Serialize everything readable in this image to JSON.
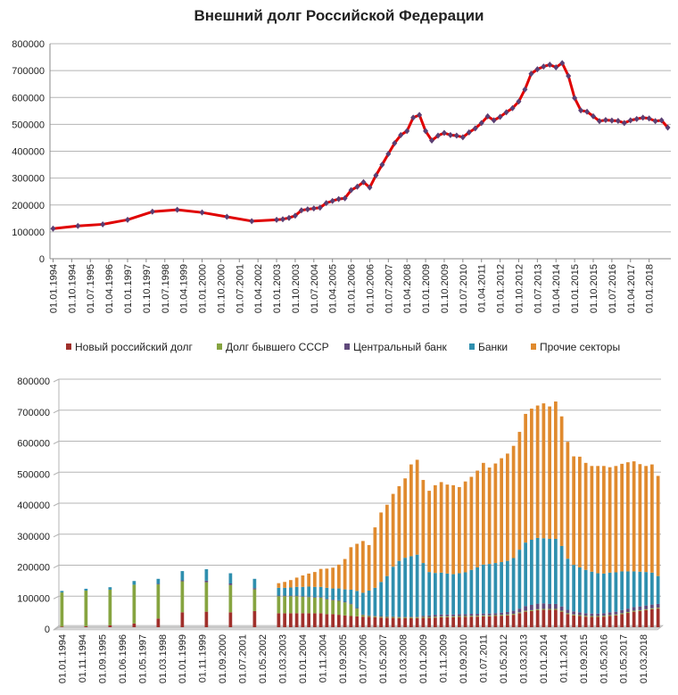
{
  "title": "Внешний долг Российской Федерации",
  "chart_data": [
    {
      "type": "line",
      "title": "Внешний долг Российской Федерации",
      "ylim": [
        0,
        800000
      ],
      "yticks": [
        "0",
        "100000",
        "200000",
        "300000",
        "400000",
        "500000",
        "600000",
        "700000",
        "800000"
      ],
      "xtick_labels": [
        "01.01.1994",
        "01.10.1994",
        "01.07.1995",
        "01.04.1996",
        "01.01.1997",
        "01.10.1997",
        "01.07.1998",
        "01.04.1999",
        "01.01.2000",
        "01.10.2000",
        "01.07.2001",
        "01.04.2002",
        "01.01.2003",
        "01.10.2003",
        "01.07.2004",
        "01.04.2005",
        "01.01.2006",
        "01.10.2006",
        "01.07.2007",
        "01.04.2008",
        "01.01.2009",
        "01.10.2009",
        "01.07.2010",
        "01.04.2011",
        "01.01.2012",
        "01.10.2012",
        "01.07.2013",
        "01.04.2014",
        "01.01.2015",
        "01.10.2015",
        "01.07.2016",
        "01.04.2017",
        "01.01.2018"
      ],
      "line_color": "#e00000",
      "marker_color": "#5b3f73",
      "points": [
        {
          "t": 0,
          "v": 112000
        },
        {
          "t": 4,
          "v": 122000
        },
        {
          "t": 8,
          "v": 128000
        },
        {
          "t": 12,
          "v": 145000
        },
        {
          "t": 16,
          "v": 175000
        },
        {
          "t": 20,
          "v": 182000
        },
        {
          "t": 24,
          "v": 172000
        },
        {
          "t": 28,
          "v": 156000
        },
        {
          "t": 32,
          "v": 140000
        },
        {
          "t": 36,
          "v": 145000
        },
        {
          "t": 37,
          "v": 147000
        },
        {
          "t": 38,
          "v": 152000
        },
        {
          "t": 39,
          "v": 160000
        },
        {
          "t": 40,
          "v": 180000
        },
        {
          "t": 41,
          "v": 184000
        },
        {
          "t": 42,
          "v": 187000
        },
        {
          "t": 43,
          "v": 190000
        },
        {
          "t": 44,
          "v": 207000
        },
        {
          "t": 45,
          "v": 215000
        },
        {
          "t": 46,
          "v": 222000
        },
        {
          "t": 47,
          "v": 225000
        },
        {
          "t": 48,
          "v": 255000
        },
        {
          "t": 49,
          "v": 268000
        },
        {
          "t": 50,
          "v": 285000
        },
        {
          "t": 51,
          "v": 265000
        },
        {
          "t": 52,
          "v": 310000
        },
        {
          "t": 53,
          "v": 350000
        },
        {
          "t": 54,
          "v": 390000
        },
        {
          "t": 55,
          "v": 430000
        },
        {
          "t": 56,
          "v": 460000
        },
        {
          "t": 57,
          "v": 475000
        },
        {
          "t": 58,
          "v": 525000
        },
        {
          "t": 59,
          "v": 535000
        },
        {
          "t": 60,
          "v": 475000
        },
        {
          "t": 61,
          "v": 440000
        },
        {
          "t": 62,
          "v": 458000
        },
        {
          "t": 63,
          "v": 468000
        },
        {
          "t": 64,
          "v": 460000
        },
        {
          "t": 65,
          "v": 458000
        },
        {
          "t": 66,
          "v": 452000
        },
        {
          "t": 67,
          "v": 470000
        },
        {
          "t": 68,
          "v": 485000
        },
        {
          "t": 69,
          "v": 505000
        },
        {
          "t": 70,
          "v": 530000
        },
        {
          "t": 71,
          "v": 515000
        },
        {
          "t": 72,
          "v": 528000
        },
        {
          "t": 73,
          "v": 545000
        },
        {
          "t": 74,
          "v": 560000
        },
        {
          "t": 75,
          "v": 585000
        },
        {
          "t": 76,
          "v": 630000
        },
        {
          "t": 77,
          "v": 688000
        },
        {
          "t": 78,
          "v": 705000
        },
        {
          "t": 79,
          "v": 715000
        },
        {
          "t": 80,
          "v": 722000
        },
        {
          "t": 81,
          "v": 712000
        },
        {
          "t": 82,
          "v": 728000
        },
        {
          "t": 83,
          "v": 680000
        },
        {
          "t": 84,
          "v": 598000
        },
        {
          "t": 85,
          "v": 552000
        },
        {
          "t": 86,
          "v": 547000
        },
        {
          "t": 87,
          "v": 530000
        },
        {
          "t": 88,
          "v": 512000
        },
        {
          "t": 89,
          "v": 516000
        },
        {
          "t": 90,
          "v": 514000
        },
        {
          "t": 91,
          "v": 513000
        },
        {
          "t": 92,
          "v": 505000
        },
        {
          "t": 93,
          "v": 515000
        },
        {
          "t": 94,
          "v": 520000
        },
        {
          "t": 95,
          "v": 525000
        },
        {
          "t": 96,
          "v": 522000
        },
        {
          "t": 97,
          "v": 512000
        },
        {
          "t": 98,
          "v": 515000
        },
        {
          "t": 99,
          "v": 488000
        }
      ]
    },
    {
      "type": "bar",
      "stacked": true,
      "ylim": [
        0,
        800000
      ],
      "yticks": [
        "0",
        "100000",
        "200000",
        "300000",
        "400000",
        "500000",
        "600000",
        "700000",
        "800000"
      ],
      "series": [
        {
          "name": "Новый российский долг",
          "color": "#a0302b"
        },
        {
          "name": "Долг бывшего СССР",
          "color": "#86a440"
        },
        {
          "name": "Центральный банк",
          "color": "#604a7b"
        },
        {
          "name": "Банки",
          "color": "#2f8fae"
        },
        {
          "name": "Прочие секторы",
          "color": "#e08a2e"
        }
      ],
      "xtick_labels": [
        "01.01.1994",
        "01.11.1994",
        "01.09.1995",
        "01.06.1996",
        "01.05.1997",
        "01.03.1998",
        "01.01.1999",
        "01.11.1999",
        "01.09.2000",
        "01.07.2001",
        "01.05.2002",
        "01.03.2003",
        "01.01.2004",
        "01.11.2004",
        "01.09.2005",
        "01.07.2006",
        "01.05.2007",
        "01.03.2008",
        "01.01.2009",
        "01.11.2009",
        "01.09.2010",
        "01.07.2011",
        "01.05.2012",
        "01.03.2013",
        "01.01.2014",
        "01.11.2014",
        "01.09.2015",
        "01.05.2016",
        "01.05.2017",
        "01.03.2018"
      ],
      "points": [
        {
          "t": 0,
          "vals": [
            2000,
            110000,
            0,
            5000,
            0
          ]
        },
        {
          "t": 4,
          "vals": [
            3000,
            115000,
            0,
            6000,
            0
          ]
        },
        {
          "t": 8,
          "vals": [
            6000,
            115000,
            0,
            8000,
            0
          ]
        },
        {
          "t": 12,
          "vals": [
            12000,
            125000,
            0,
            12000,
            0
          ]
        },
        {
          "t": 16,
          "vals": [
            28000,
            110000,
            2000,
            16000,
            0
          ]
        },
        {
          "t": 20,
          "vals": [
            48000,
            100000,
            3000,
            30000,
            0
          ]
        },
        {
          "t": 24,
          "vals": [
            50000,
            95000,
            5000,
            37000,
            0
          ]
        },
        {
          "t": 28,
          "vals": [
            48000,
            88000,
            5000,
            33000,
            0
          ]
        },
        {
          "t": 32,
          "vals": [
            52000,
            70000,
            4000,
            30000,
            0
          ]
        },
        {
          "t": 36,
          "vals": [
            45000,
            55000,
            2000,
            25000,
            15000
          ]
        },
        {
          "t": 37,
          "vals": [
            45000,
            55000,
            2000,
            25000,
            19000
          ]
        },
        {
          "t": 38,
          "vals": [
            45000,
            55000,
            2000,
            26000,
            24000
          ]
        },
        {
          "t": 39,
          "vals": [
            45000,
            55000,
            2000,
            28000,
            30000
          ]
        },
        {
          "t": 40,
          "vals": [
            45000,
            53000,
            2000,
            30000,
            37000
          ]
        },
        {
          "t": 41,
          "vals": [
            45000,
            52000,
            2000,
            32000,
            42000
          ]
        },
        {
          "t": 42,
          "vals": [
            45000,
            50000,
            2000,
            33000,
            48000
          ]
        },
        {
          "t": 43,
          "vals": [
            45000,
            50000,
            2000,
            33000,
            58000
          ]
        },
        {
          "t": 44,
          "vals": [
            42000,
            48000,
            2000,
            35000,
            62000
          ]
        },
        {
          "t": 45,
          "vals": [
            42000,
            45000,
            2000,
            36000,
            67000
          ]
        },
        {
          "t": 46,
          "vals": [
            40000,
            45000,
            2000,
            38000,
            77000
          ]
        },
        {
          "t": 47,
          "vals": [
            38000,
            42000,
            2000,
            40000,
            98000
          ]
        },
        {
          "t": 48,
          "vals": [
            36000,
            38000,
            2000,
            45000,
            137000
          ]
        },
        {
          "t": 49,
          "vals": [
            35000,
            25000,
            2000,
            55000,
            152000
          ]
        },
        {
          "t": 50,
          "vals": [
            34000,
            5000,
            2000,
            70000,
            167000
          ]
        },
        {
          "t": 51,
          "vals": [
            33000,
            3000,
            2000,
            80000,
            147000
          ]
        },
        {
          "t": 52,
          "vals": [
            32000,
            3000,
            2000,
            90000,
            195000
          ]
        },
        {
          "t": 53,
          "vals": [
            31000,
            3000,
            2000,
            110000,
            224000
          ]
        },
        {
          "t": 54,
          "vals": [
            30000,
            3000,
            2000,
            130000,
            230000
          ]
        },
        {
          "t": 55,
          "vals": [
            30000,
            3000,
            2000,
            160000,
            235000
          ]
        },
        {
          "t": 56,
          "vals": [
            29000,
            3000,
            2000,
            180000,
            241000
          ]
        },
        {
          "t": 57,
          "vals": [
            29000,
            3000,
            2000,
            190000,
            256000
          ]
        },
        {
          "t": 58,
          "vals": [
            29000,
            3000,
            2000,
            195000,
            296000
          ]
        },
        {
          "t": 59,
          "vals": [
            29000,
            3000,
            2000,
            200000,
            306000
          ]
        },
        {
          "t": 60,
          "vals": [
            30000,
            3000,
            4000,
            170000,
            268000
          ]
        },
        {
          "t": 61,
          "vals": [
            30000,
            3000,
            5000,
            140000,
            262000
          ]
        },
        {
          "t": 62,
          "vals": [
            31000,
            3000,
            6000,
            135000,
            283000
          ]
        },
        {
          "t": 63,
          "vals": [
            32000,
            3000,
            6000,
            135000,
            292000
          ]
        },
        {
          "t": 64,
          "vals": [
            32000,
            3000,
            6000,
            132000,
            287000
          ]
        },
        {
          "t": 65,
          "vals": [
            32000,
            3000,
            6000,
            130000,
            287000
          ]
        },
        {
          "t": 66,
          "vals": [
            33000,
            3000,
            6000,
            132000,
            278000
          ]
        },
        {
          "t": 67,
          "vals": [
            33000,
            3000,
            6000,
            135000,
            293000
          ]
        },
        {
          "t": 68,
          "vals": [
            34000,
            3000,
            6000,
            142000,
            300000
          ]
        },
        {
          "t": 69,
          "vals": [
            34000,
            3000,
            6000,
            150000,
            312000
          ]
        },
        {
          "t": 70,
          "vals": [
            35000,
            3000,
            6000,
            158000,
            328000
          ]
        },
        {
          "t": 71,
          "vals": [
            35000,
            3000,
            6000,
            160000,
            311000
          ]
        },
        {
          "t": 72,
          "vals": [
            36000,
            3000,
            6000,
            162000,
            321000
          ]
        },
        {
          "t": 73,
          "vals": [
            37000,
            3000,
            7000,
            163000,
            335000
          ]
        },
        {
          "t": 74,
          "vals": [
            38000,
            3000,
            8000,
            165000,
            346000
          ]
        },
        {
          "t": 75,
          "vals": [
            40000,
            3000,
            10000,
            170000,
            362000
          ]
        },
        {
          "t": 76,
          "vals": [
            45000,
            3000,
            12000,
            190000,
            380000
          ]
        },
        {
          "t": 77,
          "vals": [
            50000,
            3000,
            15000,
            205000,
            415000
          ]
        },
        {
          "t": 78,
          "vals": [
            52000,
            3000,
            17000,
            210000,
            423000
          ]
        },
        {
          "t": 79,
          "vals": [
            55000,
            3000,
            18000,
            212000,
            427000
          ]
        },
        {
          "t": 80,
          "vals": [
            56000,
            3000,
            18000,
            210000,
            435000
          ]
        },
        {
          "t": 81,
          "vals": [
            56000,
            3000,
            16000,
            210000,
            427000
          ]
        },
        {
          "t": 82,
          "vals": [
            56000,
            3000,
            16000,
            210000,
            443000
          ]
        },
        {
          "t": 83,
          "vals": [
            50000,
            3000,
            14000,
            195000,
            418000
          ]
        },
        {
          "t": 84,
          "vals": [
            42000,
            3000,
            11000,
            165000,
            377000
          ]
        },
        {
          "t": 85,
          "vals": [
            38000,
            3000,
            10000,
            150000,
            350000
          ]
        },
        {
          "t": 86,
          "vals": [
            36000,
            3000,
            9000,
            145000,
            357000
          ]
        },
        {
          "t": 87,
          "vals": [
            34000,
            3000,
            8000,
            140000,
            345000
          ]
        },
        {
          "t": 88,
          "vals": [
            33000,
            3000,
            8000,
            135000,
            341000
          ]
        },
        {
          "t": 89,
          "vals": [
            33000,
            3000,
            8000,
            130000,
            346000
          ]
        },
        {
          "t": 90,
          "vals": [
            34000,
            3000,
            8000,
            128000,
            347000
          ]
        },
        {
          "t": 91,
          "vals": [
            36000,
            3000,
            9000,
            128000,
            340000
          ]
        },
        {
          "t": 92,
          "vals": [
            38000,
            3000,
            9000,
            127000,
            343000
          ]
        },
        {
          "t": 93,
          "vals": [
            42000,
            3000,
            10000,
            125000,
            347000
          ]
        },
        {
          "t": 94,
          "vals": [
            46000,
            3000,
            11000,
            120000,
            352000
          ]
        },
        {
          "t": 95,
          "vals": [
            50000,
            3000,
            12000,
            115000,
            355000
          ]
        },
        {
          "t": 96,
          "vals": [
            52000,
            3000,
            12000,
            112000,
            347000
          ]
        },
        {
          "t": 97,
          "vals": [
            55000,
            3000,
            12000,
            108000,
            342000
          ]
        },
        {
          "t": 98,
          "vals": [
            58000,
            3000,
            12000,
            103000,
            349000
          ]
        },
        {
          "t": 99,
          "vals": [
            60000,
            3000,
            12000,
            90000,
            323000
          ]
        }
      ]
    }
  ]
}
